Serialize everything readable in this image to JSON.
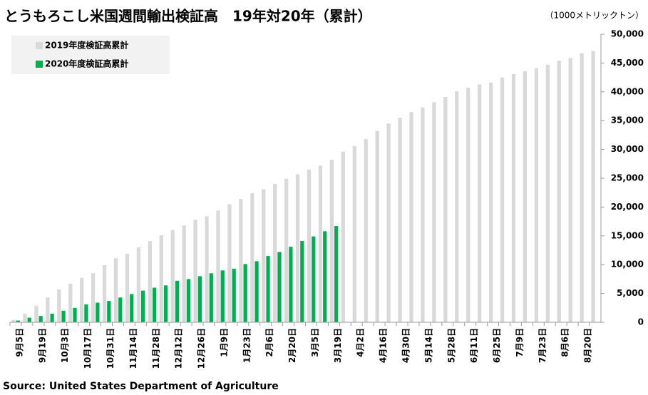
{
  "chart_data": {
    "type": "bar",
    "title": "とうもろこし米国週間輸出検証高　19年対20年（累計）",
    "unit_label": "（1000メトリックトン）",
    "source": "Source: United States Department of Agriculture",
    "categories": [
      "9月5日",
      null,
      "9月19日",
      null,
      "10月3日",
      null,
      "10月17日",
      null,
      "10月31日",
      null,
      "11月14日",
      null,
      "11月28日",
      null,
      "12月12日",
      null,
      "12月26日",
      null,
      "1月9日",
      null,
      "1月23日",
      null,
      "2月6日",
      null,
      "2月20日",
      null,
      "3月5日",
      null,
      "3月19日",
      null,
      "4月2日",
      null,
      "4月16日",
      null,
      "4月30日",
      null,
      "5月14日",
      null,
      "5月28日",
      null,
      "6月11日",
      null,
      "6月25日",
      null,
      "7月9日",
      null,
      "7月23日",
      null,
      "8月6日",
      null,
      "8月20日",
      null
    ],
    "series": [
      {
        "name": "2019年度検証高累計",
        "color": "#d9d9d9",
        "values": [
          400,
          1500,
          2900,
          4300,
          5700,
          6700,
          7700,
          8500,
          9900,
          11100,
          11900,
          13000,
          14100,
          15100,
          16000,
          16800,
          17800,
          18400,
          19400,
          20500,
          21400,
          22400,
          23100,
          24000,
          24900,
          25700,
          26500,
          27200,
          28200,
          29600,
          30600,
          31800,
          33200,
          34500,
          35500,
          36500,
          37300,
          38200,
          39100,
          40100,
          40700,
          41300,
          41600,
          42500,
          43100,
          43600,
          44100,
          44700,
          45400,
          45900,
          46700,
          47100
        ]
      },
      {
        "name": "2020年度検証高累計",
        "color": "#00b050",
        "values": [
          300,
          800,
          1100,
          1500,
          2000,
          2500,
          3100,
          3400,
          3700,
          4300,
          4900,
          5500,
          6000,
          6400,
          7200,
          7500,
          8000,
          8500,
          9000,
          9300,
          10100,
          10600,
          11500,
          12200,
          13100,
          14100,
          14900,
          15800,
          16700,
          null,
          null,
          null,
          null,
          null,
          null,
          null,
          null,
          null,
          null,
          null,
          null,
          null,
          null,
          null,
          null,
          null,
          null,
          null,
          null,
          null,
          null,
          null
        ]
      }
    ],
    "ylim": [
      0,
      50000
    ],
    "yticks": [
      0,
      {
        "value": 5000,
        "label": "5,000"
      },
      {
        "value": 10000,
        "label": "10,000"
      },
      {
        "value": 15000,
        "label": "15,000"
      },
      {
        "value": 20000,
        "label": "20,000"
      },
      {
        "value": 25000,
        "label": "25,000"
      },
      {
        "value": 30000,
        "label": "30,000"
      },
      {
        "value": 35000,
        "label": "35,000"
      },
      {
        "value": 40000,
        "label": "40,000"
      },
      {
        "value": 45000,
        "label": "45,000"
      },
      {
        "value": 50000,
        "label": "50,000"
      }
    ],
    "legend": "upper left"
  }
}
